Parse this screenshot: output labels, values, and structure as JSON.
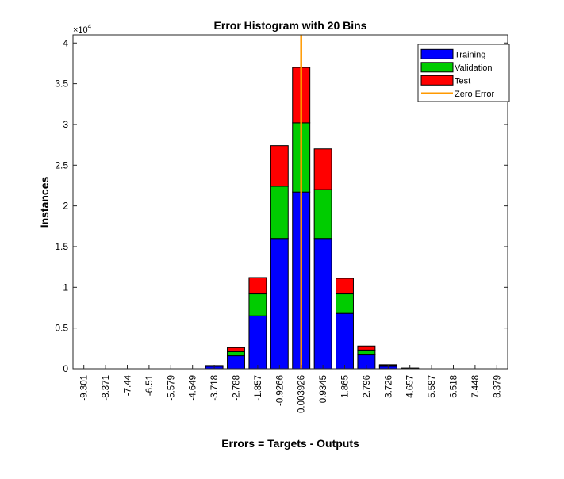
{
  "chart_data": {
    "type": "bar",
    "stacked": true,
    "title": "Error Histogram with 20 Bins",
    "xlabel": "Errors = Targets - Outputs",
    "ylabel": "Instances",
    "y_exponent_label": "×10",
    "y_exponent_power": "4",
    "ylim": [
      0,
      41000
    ],
    "yticks": [
      0,
      5000,
      10000,
      15000,
      20000,
      25000,
      30000,
      35000,
      40000
    ],
    "ytick_labels": [
      "0",
      "0.5",
      "1",
      "1.5",
      "2",
      "2.5",
      "3",
      "3.5",
      "4"
    ],
    "categories": [
      "-9.301",
      "-8.371",
      "-7.44",
      "-6.51",
      "-5.579",
      "-4.649",
      "-3.718",
      "-2.788",
      "-1.857",
      "-0.9266",
      "0.003926",
      "0.9345",
      "1.865",
      "2.796",
      "3.726",
      "4.657",
      "5.587",
      "6.518",
      "7.448",
      "8.379"
    ],
    "series": [
      {
        "name": "Training",
        "color": "#0000ff",
        "values": [
          0,
          0,
          0,
          0,
          0,
          0,
          300,
          1600,
          6500,
          16000,
          21700,
          16000,
          6800,
          1700,
          300,
          50,
          0,
          0,
          0,
          0
        ]
      },
      {
        "name": "Validation",
        "color": "#00cc00",
        "values": [
          0,
          0,
          0,
          0,
          0,
          0,
          50,
          500,
          2700,
          6400,
          8500,
          6000,
          2400,
          600,
          100,
          20,
          0,
          0,
          0,
          0
        ]
      },
      {
        "name": "Test",
        "color": "#ff0000",
        "values": [
          0,
          0,
          0,
          0,
          0,
          0,
          50,
          500,
          2000,
          5000,
          6800,
          5000,
          1900,
          500,
          100,
          10,
          0,
          0,
          0,
          0
        ]
      }
    ],
    "zero_error": {
      "name": "Zero Error",
      "color": "#ff9900",
      "bin_index": 10
    },
    "legend_position": "top-right",
    "grid": false
  }
}
